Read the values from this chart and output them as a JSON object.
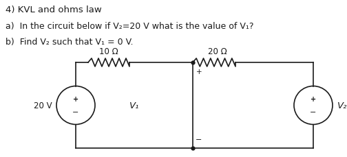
{
  "title": "4) KVL and ohms law",
  "line_a": "a)  In the circuit below if V₂=20 V what is the value of V₁?",
  "line_b": "b)  Find V₂ such that V₁ = 0 V.",
  "resistor1_label": "10 Ω",
  "resistor2_label": "20 Ω",
  "source_label": "20 V",
  "v1_label": "V₁",
  "v2_label": "V₂",
  "bg_color": "#ffffff",
  "line_color": "#1a1a1a",
  "font_color": "#1a1a1a",
  "title_fontsize": 9.5,
  "text_fontsize": 9.0,
  "label_fontsize": 8.5,
  "circuit_label_fontsize": 9.5
}
